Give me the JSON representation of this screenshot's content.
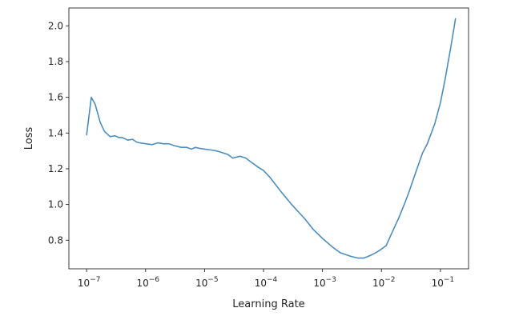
{
  "chart_data": {
    "type": "line",
    "title": "",
    "xlabel": "Learning Rate",
    "ylabel": "Loss",
    "xscale": "log",
    "xlim": [
      5e-08,
      0.3
    ],
    "ylim": [
      0.64,
      2.1
    ],
    "x_ticks": [
      {
        "value": 1e-07,
        "base": "10",
        "exp": "−7"
      },
      {
        "value": 1e-06,
        "base": "10",
        "exp": "−6"
      },
      {
        "value": 1e-05,
        "base": "10",
        "exp": "−5"
      },
      {
        "value": 0.0001,
        "base": "10",
        "exp": "−4"
      },
      {
        "value": 0.001,
        "base": "10",
        "exp": "−3"
      },
      {
        "value": 0.01,
        "base": "10",
        "exp": "−2"
      },
      {
        "value": 0.1,
        "base": "10",
        "exp": "−1"
      }
    ],
    "y_ticks": [
      {
        "value": 0.8,
        "label": "0.8"
      },
      {
        "value": 1.0,
        "label": "1.0"
      },
      {
        "value": 1.2,
        "label": "1.2"
      },
      {
        "value": 1.4,
        "label": "1.4"
      },
      {
        "value": 1.6,
        "label": "1.6"
      },
      {
        "value": 1.8,
        "label": "1.8"
      },
      {
        "value": 2.0,
        "label": "2.0"
      }
    ],
    "grid": false,
    "legend": "none",
    "series": [
      {
        "color": "#4c8dbf",
        "x": [
          1e-07,
          1.2e-07,
          1.4e-07,
          1.7e-07,
          2e-07,
          2.5e-07,
          3e-07,
          3.5e-07,
          4e-07,
          5e-07,
          6e-07,
          7e-07,
          8e-07,
          1e-06,
          1.3e-06,
          1.6e-06,
          2e-06,
          2.5e-06,
          3e-06,
          4e-06,
          5e-06,
          6e-06,
          7e-06,
          8e-06,
          1e-05,
          1.3e-05,
          1.6e-05,
          2e-05,
          2.5e-05,
          3e-05,
          4e-05,
          5e-05,
          6e-05,
          8e-05,
          0.0001,
          0.00013,
          0.0002,
          0.0003,
          0.0005,
          0.0007,
          0.001,
          0.0015,
          0.002,
          0.003,
          0.004,
          0.005,
          0.006,
          0.007,
          0.008,
          0.01,
          0.012,
          0.015,
          0.02,
          0.025,
          0.03,
          0.04,
          0.05,
          0.06,
          0.08,
          0.1,
          0.12,
          0.15,
          0.18
        ],
        "y": [
          1.39,
          1.6,
          1.56,
          1.46,
          1.41,
          1.38,
          1.385,
          1.375,
          1.375,
          1.36,
          1.365,
          1.35,
          1.345,
          1.34,
          1.335,
          1.345,
          1.34,
          1.34,
          1.33,
          1.32,
          1.32,
          1.31,
          1.32,
          1.315,
          1.31,
          1.305,
          1.3,
          1.29,
          1.28,
          1.26,
          1.27,
          1.26,
          1.24,
          1.21,
          1.19,
          1.15,
          1.07,
          1.0,
          0.92,
          0.86,
          0.81,
          0.76,
          0.73,
          0.71,
          0.7,
          0.7,
          0.71,
          0.72,
          0.73,
          0.75,
          0.77,
          0.84,
          0.93,
          1.01,
          1.08,
          1.2,
          1.29,
          1.34,
          1.45,
          1.57,
          1.7,
          1.88,
          2.04
        ]
      }
    ]
  }
}
